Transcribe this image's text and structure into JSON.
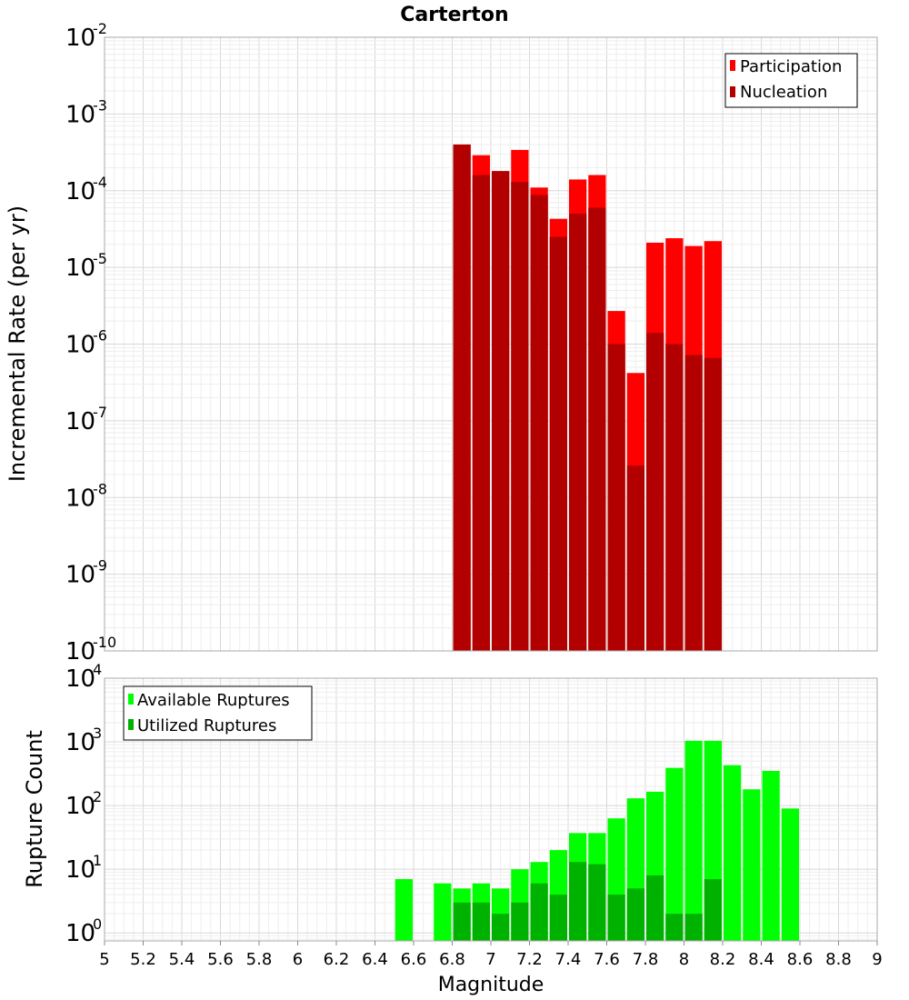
{
  "title": "Carterton",
  "chart_data": [
    {
      "type": "bar",
      "title": "Carterton",
      "ylabel": "Incremental Rate (per yr)",
      "xlabel": "",
      "xlim": [
        5,
        9
      ],
      "ylim": [
        1e-10,
        0.01
      ],
      "yscale": "log",
      "grid": true,
      "legend_position": "top-right",
      "bar_width": 0.1,
      "x": [
        6.85,
        6.95,
        7.05,
        7.15,
        7.25,
        7.35,
        7.45,
        7.55,
        7.65,
        7.75,
        7.85,
        7.95,
        8.05,
        8.15
      ],
      "series": [
        {
          "name": "Participation",
          "color": "#ff0000",
          "values": [
            0.0004,
            0.00029,
            0.00018,
            0.00034,
            0.00011,
            4.3e-05,
            0.00014,
            0.00016,
            2.7e-06,
            4.2e-07,
            2.1e-05,
            2.4e-05,
            1.9e-05,
            2.2e-05
          ]
        },
        {
          "name": "Nucleation",
          "color": "#b20000",
          "values": [
            0.0004,
            0.00016,
            0.00018,
            0.00013,
            8.8e-05,
            2.5e-05,
            5e-05,
            6e-05,
            1e-06,
            2.6e-08,
            1.4e-06,
            1e-06,
            7.2e-07,
            6.6e-07
          ]
        }
      ],
      "y_ticks": [
        {
          "base": "10",
          "exp": "-2"
        },
        {
          "base": "10",
          "exp": "-3"
        },
        {
          "base": "10",
          "exp": "-4"
        },
        {
          "base": "10",
          "exp": "-5"
        },
        {
          "base": "10",
          "exp": "-6"
        },
        {
          "base": "10",
          "exp": "-7"
        },
        {
          "base": "10",
          "exp": "-8"
        },
        {
          "base": "10",
          "exp": "-9"
        },
        {
          "base": "10",
          "exp": "-10"
        }
      ]
    },
    {
      "type": "bar",
      "ylabel": "Rupture Count",
      "xlabel": "Magnitude",
      "xlim": [
        5,
        9
      ],
      "ylim": [
        0.75,
        10000
      ],
      "yscale": "log",
      "grid": true,
      "legend_position": "top-left",
      "bar_width": 0.1,
      "x": [
        6.55,
        6.75,
        6.85,
        6.95,
        7.05,
        7.15,
        7.25,
        7.35,
        7.45,
        7.55,
        7.65,
        7.75,
        7.85,
        7.95,
        8.05,
        8.15,
        8.25,
        8.35,
        8.45,
        8.55
      ],
      "series": [
        {
          "name": "Available Ruptures",
          "color": "#00ff00",
          "values": [
            7,
            6,
            5,
            6,
            5,
            10,
            13,
            20,
            37,
            37,
            63,
            130,
            165,
            390,
            1040,
            1040,
            430,
            180,
            350,
            90
          ]
        },
        {
          "name": "Utilized Ruptures",
          "color": "#00b200",
          "values": [
            null,
            null,
            3,
            3,
            2,
            3,
            6,
            4,
            13,
            12,
            4,
            5,
            8,
            2,
            2,
            7,
            null,
            null,
            null,
            null
          ]
        }
      ],
      "x_ticks": [
        "5",
        "5.2",
        "5.4",
        "5.6",
        "5.8",
        "6",
        "6.2",
        "6.4",
        "6.6",
        "6.8",
        "7",
        "7.2",
        "7.4",
        "7.6",
        "7.8",
        "8",
        "8.2",
        "8.4",
        "8.6",
        "8.8",
        "9"
      ],
      "y_ticks": [
        {
          "base": "10",
          "exp": "4"
        },
        {
          "base": "10",
          "exp": "3"
        },
        {
          "base": "10",
          "exp": "2"
        },
        {
          "base": "10",
          "exp": "1"
        },
        {
          "base": "10",
          "exp": "0"
        }
      ]
    }
  ]
}
